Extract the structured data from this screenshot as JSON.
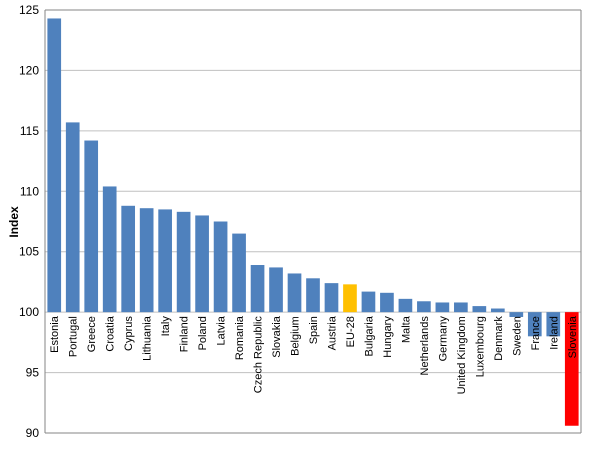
{
  "chart_data": {
    "type": "bar",
    "title": "",
    "xlabel": "",
    "ylabel": "Index",
    "ylim": [
      90,
      125
    ],
    "yticks": [
      90,
      95,
      100,
      105,
      110,
      115,
      120,
      125
    ],
    "baseline": 100,
    "grid": true,
    "legend": "none",
    "categories": [
      "Estonia",
      "Portugal",
      "Greece",
      "Croatia",
      "Cyprus",
      "Lithuania",
      "Italy",
      "Finland",
      "Poland",
      "Latvia",
      "Romania",
      "Czech Republic",
      "Slovakia",
      "Belgium",
      "Spain",
      "Austria",
      "EU-28",
      "Bulgaria",
      "Hungary",
      "Malta",
      "Netherlands",
      "Germany",
      "United Kingdom",
      "Luxembourg",
      "Denmark",
      "Sweden",
      "France",
      "Ireland",
      "Slovenia"
    ],
    "values": [
      124.3,
      115.7,
      114.2,
      110.4,
      108.8,
      108.6,
      108.5,
      108.3,
      108.0,
      107.5,
      106.5,
      103.9,
      103.7,
      103.2,
      102.8,
      102.4,
      102.3,
      101.7,
      101.6,
      101.1,
      100.9,
      100.8,
      100.8,
      100.5,
      100.3,
      99.6,
      98.0,
      98.0,
      90.6
    ],
    "colors": {
      "default": "#4f81bd",
      "EU-28": "#ffc000",
      "Slovenia": "#ff0000",
      "gridline": "#c0c0c0",
      "axis": "#868686"
    }
  }
}
